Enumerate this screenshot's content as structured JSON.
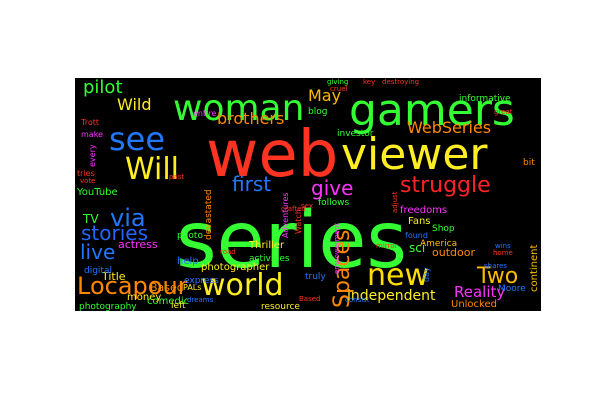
{
  "words": [
    {
      "text": "series",
      "color": "#33ff33"
    },
    {
      "text": "web",
      "color": "#ff3322"
    },
    {
      "text": "gamers",
      "color": "#33ff33"
    },
    {
      "text": "viewer",
      "color": "#ffee22"
    },
    {
      "text": "woman",
      "color": "#33ff33"
    },
    {
      "text": "see",
      "color": "#2277ff"
    },
    {
      "text": "Will",
      "color": "#ffee22"
    },
    {
      "text": "world",
      "color": "#ffee22"
    },
    {
      "text": "new",
      "color": "#ffdd00"
    },
    {
      "text": "struggle",
      "color": "#ff2222"
    },
    {
      "text": "Locapour",
      "color": "#ff8800"
    },
    {
      "text": "via",
      "color": "#2277ff"
    },
    {
      "text": "stories",
      "color": "#2266ff"
    },
    {
      "text": "first",
      "color": "#2277ff"
    },
    {
      "text": "give",
      "color": "#ff33ff"
    },
    {
      "text": "live",
      "color": "#2277ff"
    },
    {
      "text": "Two",
      "color": "#ffbb00"
    },
    {
      "text": "Spaces",
      "color": "#ff8800"
    },
    {
      "text": "WebSeries",
      "color": "#ff8800"
    },
    {
      "text": "pilot",
      "color": "#33ff33"
    },
    {
      "text": "Wild",
      "color": "#ffee22"
    },
    {
      "text": "brothers",
      "color": "#ff8800"
    },
    {
      "text": "May",
      "color": "#ffbb00"
    },
    {
      "text": "Reality",
      "color": "#ff33ff"
    },
    {
      "text": "independent",
      "color": "#ffee22"
    },
    {
      "text": "TV",
      "color": "#33ff33"
    },
    {
      "text": "Title",
      "color": "#ffee22"
    },
    {
      "text": "actress",
      "color": "#ff33ff"
    },
    {
      "text": "Based",
      "color": "#ff8800"
    },
    {
      "text": "photographer",
      "color": "#ffee22"
    },
    {
      "text": "money",
      "color": "#ffee22"
    },
    {
      "text": "comedic",
      "color": "#33ff33"
    },
    {
      "text": "YouTube",
      "color": "#33ff33"
    },
    {
      "text": "help",
      "color": "#2277ff"
    },
    {
      "text": "sci",
      "color": "#33ff33"
    },
    {
      "text": "outdoor",
      "color": "#ff8800"
    },
    {
      "text": "Thriller",
      "color": "#ffee22"
    },
    {
      "text": "Fans",
      "color": "#ffee22"
    },
    {
      "text": "Unlocked",
      "color": "#ff8800"
    },
    {
      "text": "Moore",
      "color": "#2277ff"
    },
    {
      "text": "freedoms",
      "color": "#ff33ff"
    },
    {
      "text": "Shop",
      "color": "#33ff33"
    },
    {
      "text": "bit",
      "color": "#ff8800"
    },
    {
      "text": "blog",
      "color": "#33ff33"
    },
    {
      "text": "photography",
      "color": "#33ff33"
    },
    {
      "text": "digital",
      "color": "#2277ff"
    },
    {
      "text": "left",
      "color": "#ffee22"
    },
    {
      "text": "express",
      "color": "#2277ff"
    },
    {
      "text": "truly",
      "color": "#2277ff"
    },
    {
      "text": "photo",
      "color": "#33ff33"
    },
    {
      "text": "follows",
      "color": "#33ff33"
    },
    {
      "text": "informative",
      "color": "#33ff33"
    },
    {
      "text": "investor",
      "color": "#33ff33"
    },
    {
      "text": "devastated",
      "color": "#ff8800"
    },
    {
      "text": "activities",
      "color": "#33ff33"
    },
    {
      "text": "entire",
      "color": "#ff33ff"
    },
    {
      "text": "America",
      "color": "#ffbb00"
    },
    {
      "text": "continent",
      "color": "#ffbb00"
    },
    {
      "text": "resource",
      "color": "#ffee22"
    },
    {
      "text": "PALs",
      "color": "#ffee22"
    },
    {
      "text": "Adventures",
      "color": "#ff33ff"
    },
    {
      "text": "Watch",
      "color": "#ff3322"
    },
    {
      "text": "every",
      "color": "#ff33ff"
    },
    {
      "text": "tries",
      "color": "#ff3322"
    },
    {
      "text": "make",
      "color": "#ff33ff"
    },
    {
      "text": "Trott",
      "color": "#ff3322"
    },
    {
      "text": "found",
      "color": "#2277ff"
    },
    {
      "text": "day",
      "color": "#2277ff"
    },
    {
      "text": "giving",
      "color": "#33ff33"
    },
    {
      "text": "key",
      "color": "#ff3322"
    },
    {
      "text": "destroying",
      "color": "#ff3322"
    },
    {
      "text": "great",
      "color": "#ff3322"
    },
    {
      "text": "dreams",
      "color": "#2277ff"
    },
    {
      "text": "Based",
      "color": "#ff3322"
    },
    {
      "text": "empowerment",
      "color": "#ff33ff"
    },
    {
      "text": "cruel",
      "color": "#ff3322"
    },
    {
      "text": "crafted",
      "color": "#ff3322"
    },
    {
      "text": "mirror",
      "color": "#ff3322"
    },
    {
      "text": "past",
      "color": "#ff3322"
    },
    {
      "text": "vote",
      "color": "#ff3322"
    },
    {
      "text": "adjust",
      "color": "#ff3322"
    },
    {
      "text": "road",
      "color": "#ff3322"
    },
    {
      "text": "home",
      "color": "#ff3322"
    },
    {
      "text": "sex",
      "color": "#ff3322"
    },
    {
      "text": "shares",
      "color": "#2277ff"
    },
    {
      "text": "wins",
      "color": "#2277ff"
    },
    {
      "text": "consist",
      "color": "#2277ff"
    }
  ]
}
